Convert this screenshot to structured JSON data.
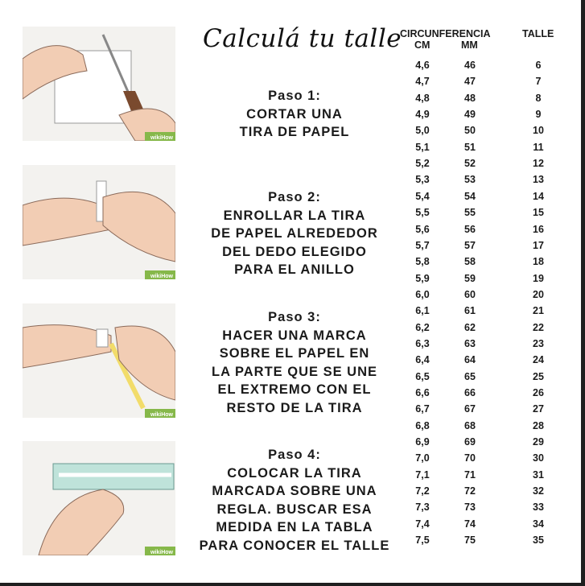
{
  "title": "Calculá tu talle",
  "table": {
    "header_circ": "CIRCUNFERENCIA",
    "header_cm": "CM",
    "header_mm": "MM",
    "header_talle": "TALLE",
    "rows": [
      [
        "4,6",
        "46",
        "6"
      ],
      [
        "4,7",
        "47",
        "7"
      ],
      [
        "4,8",
        "48",
        "8"
      ],
      [
        "4,9",
        "49",
        "9"
      ],
      [
        "5,0",
        "50",
        "10"
      ],
      [
        "5,1",
        "51",
        "11"
      ],
      [
        "5,2",
        "52",
        "12"
      ],
      [
        "5,3",
        "53",
        "13"
      ],
      [
        "5,4",
        "54",
        "14"
      ],
      [
        "5,5",
        "55",
        "15"
      ],
      [
        "5,6",
        "56",
        "16"
      ],
      [
        "5,7",
        "57",
        "17"
      ],
      [
        "5,8",
        "58",
        "18"
      ],
      [
        "5,9",
        "59",
        "19"
      ],
      [
        "6,0",
        "60",
        "20"
      ],
      [
        "6,1",
        "61",
        "21"
      ],
      [
        "6,2",
        "62",
        "22"
      ],
      [
        "6,3",
        "63",
        "23"
      ],
      [
        "6,4",
        "64",
        "24"
      ],
      [
        "6,5",
        "65",
        "25"
      ],
      [
        "6,6",
        "66",
        "26"
      ],
      [
        "6,7",
        "67",
        "27"
      ],
      [
        "6,8",
        "68",
        "28"
      ],
      [
        "6,9",
        "69",
        "29"
      ],
      [
        "7,0",
        "70",
        "30"
      ],
      [
        "7,1",
        "71",
        "31"
      ],
      [
        "7,2",
        "72",
        "32"
      ],
      [
        "7,3",
        "73",
        "33"
      ],
      [
        "7,4",
        "74",
        "34"
      ],
      [
        "7,5",
        "75",
        "35"
      ]
    ]
  },
  "steps": [
    {
      "head": "Paso 1:",
      "lines": [
        "CORTAR UNA",
        "TIRA DE PAPEL"
      ],
      "image": "cutting-paper-illustration"
    },
    {
      "head": "Paso 2:",
      "lines": [
        "ENROLLAR LA TIRA",
        "DE PAPEL ALREDEDOR",
        "DEL DEDO ELEGIDO",
        "PARA EL ANILLO"
      ],
      "image": "wrapping-finger-illustration"
    },
    {
      "head": "Paso 3:",
      "lines": [
        "HACER UNA MARCA",
        "SOBRE EL PAPEL EN",
        "LA PARTE QUE SE UNE",
        "EL EXTREMO CON EL",
        "RESTO DE LA TIRA"
      ],
      "image": "marking-paper-illustration"
    },
    {
      "head": "Paso 4:",
      "lines": [
        "COLOCAR LA TIRA",
        "MARCADA SOBRE UNA",
        "REGLA. BUSCAR ESA",
        "MEDIDA EN LA TABLA",
        "PARA CONOCER EL TALLE"
      ],
      "image": "ruler-measure-illustration"
    }
  ],
  "watermark": "wikiHow",
  "colors": {
    "skin": "#f2cdb4",
    "outline": "#8a6a5a",
    "scissors": "#7a4a2e",
    "pencil": "#f2dc6a",
    "ruler": "#bfe3da",
    "badge": "#86b84a"
  }
}
